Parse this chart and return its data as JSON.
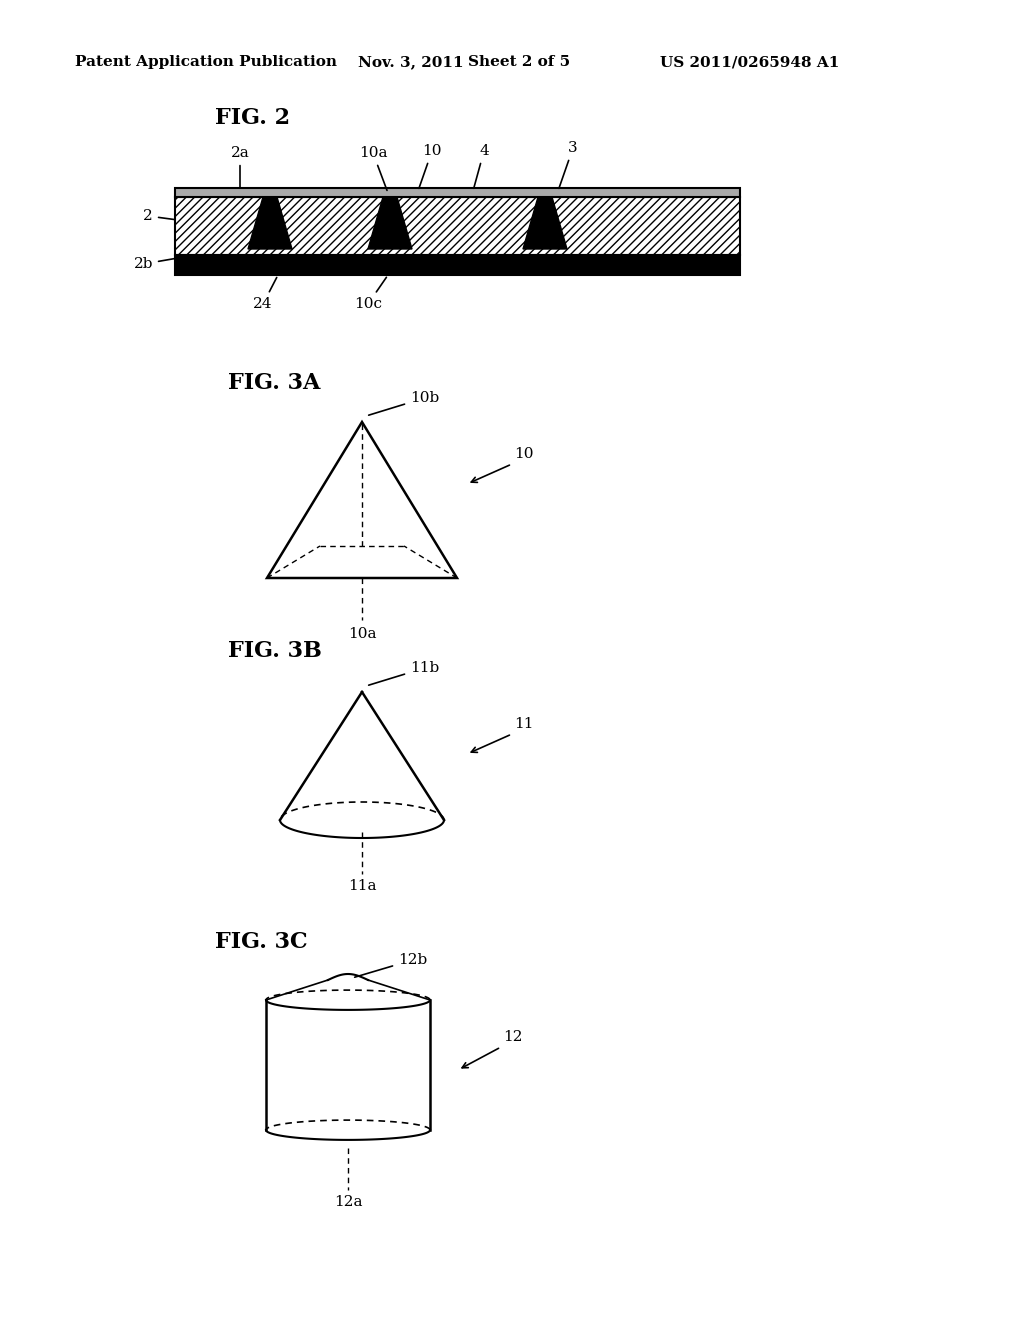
{
  "bg_color": "#ffffff",
  "header_text": "Patent Application Publication",
  "header_date": "Nov. 3, 2011",
  "header_sheet": "Sheet 2 of 5",
  "header_patent": "US 2011/0265948 A1",
  "fig2_title": "FIG. 2",
  "fig3a_title": "FIG. 3A",
  "fig3b_title": "FIG. 3B",
  "fig3c_title": "FIG. 3C",
  "line_color": "#000000",
  "hatch_color": "#555555",
  "fill_color": "#ffffff",
  "dark_fill": "#000000",
  "gray_fill": "#cccccc"
}
